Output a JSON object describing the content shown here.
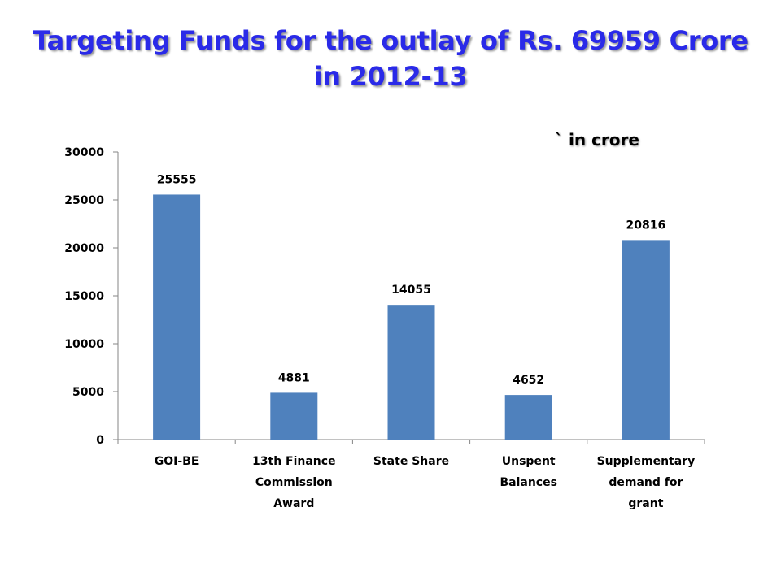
{
  "chart_data": {
    "type": "bar",
    "title_lines": [
      "Targeting Funds for the outlay of Rs. 69959 Crore",
      "in 2012-13"
    ],
    "unit_label": "` in crore",
    "categories": [
      [
        "GOI-BE"
      ],
      [
        "13th Finance",
        "Commission",
        "Award"
      ],
      [
        "State Share"
      ],
      [
        "Unspent",
        "Balances"
      ],
      [
        "Supplementary",
        "demand for",
        "grant"
      ]
    ],
    "values": [
      25555,
      4881,
      14055,
      4652,
      20816
    ],
    "ylim": [
      0,
      30000
    ],
    "yticks": [
      0,
      5000,
      10000,
      15000,
      20000,
      25000,
      30000
    ],
    "bar_color": "#4f81bd",
    "grid": false,
    "legend": "none",
    "data_labels": true
  }
}
